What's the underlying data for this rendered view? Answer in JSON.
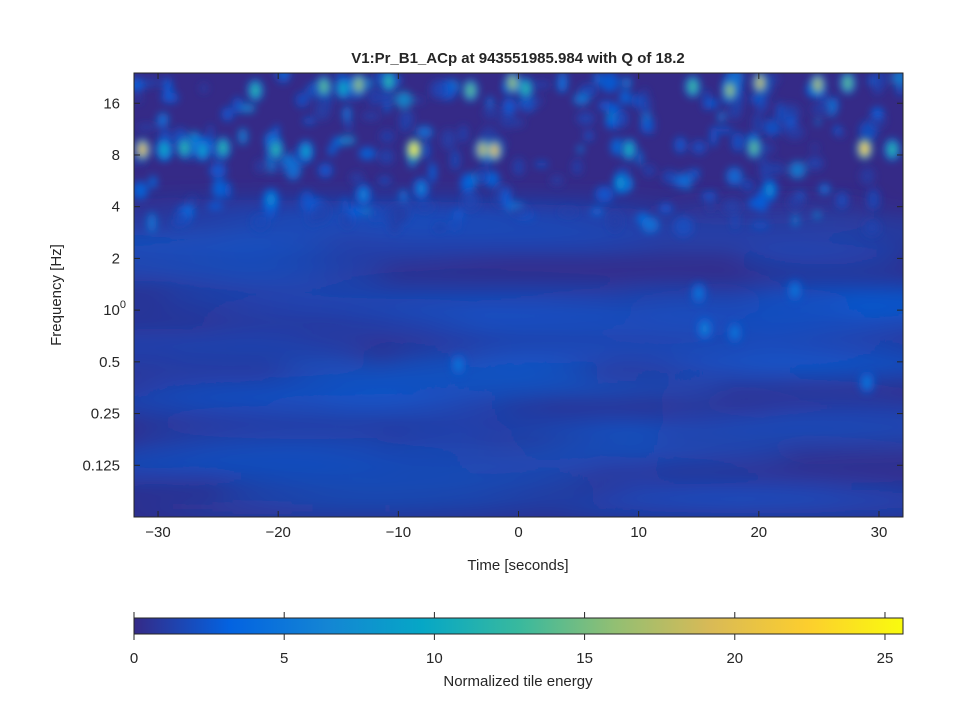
{
  "chart_data": {
    "type": "heatmap",
    "title": "V1:Pr_B1_ACp at 943551985.984 with Q of 18.2",
    "xlabel": "Time [seconds]",
    "ylabel": "Frequency [Hz]",
    "xlim": [
      -32,
      32
    ],
    "ylim": [
      0.0625,
      24
    ],
    "yscale": "log",
    "xticks": [
      {
        "value": -30,
        "label": "−30"
      },
      {
        "value": -20,
        "label": "−20"
      },
      {
        "value": -10,
        "label": "−10"
      },
      {
        "value": 0,
        "label": "0"
      },
      {
        "value": 10,
        "label": "10"
      },
      {
        "value": 20,
        "label": "20"
      },
      {
        "value": 30,
        "label": "30"
      }
    ],
    "yticks": [
      {
        "value": 16,
        "label": "16"
      },
      {
        "value": 8,
        "label": "8"
      },
      {
        "value": 4,
        "label": "4"
      },
      {
        "value": 2,
        "label": "2"
      },
      {
        "value": 1,
        "label": "10",
        "sup": "0"
      },
      {
        "value": 0.5,
        "label": "0.5"
      },
      {
        "value": 0.25,
        "label": "0.25"
      },
      {
        "value": 0.125,
        "label": "0.125"
      }
    ],
    "colorbar": {
      "label": "Normalized tile energy",
      "range": [
        0,
        25.6
      ],
      "ticks": [
        {
          "value": 0,
          "label": "0"
        },
        {
          "value": 5,
          "label": "5"
        },
        {
          "value": 10,
          "label": "10"
        },
        {
          "value": 15,
          "label": "15"
        },
        {
          "value": 20,
          "label": "20"
        },
        {
          "value": 25,
          "label": "25"
        }
      ]
    },
    "colormap": [
      "#352a87",
      "#0363e1",
      "#1485d4",
      "#06a7c6",
      "#38b99e",
      "#92bf73",
      "#d9ba56",
      "#fcce2e",
      "#f9fb0e"
    ],
    "hotspots": [
      {
        "t": -31.3,
        "f": 8.6,
        "energy": 20
      },
      {
        "t": -29.5,
        "f": 8.6,
        "energy": 10
      },
      {
        "t": -27.8,
        "f": 8.8,
        "energy": 12
      },
      {
        "t": -26.3,
        "f": 8.5,
        "energy": 9
      },
      {
        "t": -24.6,
        "f": 8.8,
        "energy": 12
      },
      {
        "t": -20.2,
        "f": 8.6,
        "energy": 12
      },
      {
        "t": -17.7,
        "f": 8.4,
        "energy": 9
      },
      {
        "t": -8.7,
        "f": 8.6,
        "energy": 25
      },
      {
        "t": -3.0,
        "f": 8.6,
        "energy": 18
      },
      {
        "t": -2.0,
        "f": 8.5,
        "energy": 20
      },
      {
        "t": 9.2,
        "f": 8.6,
        "energy": 11
      },
      {
        "t": 19.6,
        "f": 8.8,
        "energy": 14
      },
      {
        "t": 28.8,
        "f": 8.7,
        "energy": 23
      },
      {
        "t": 31.1,
        "f": 8.6,
        "energy": 12
      },
      {
        "t": -21.9,
        "f": 19.0,
        "energy": 12
      },
      {
        "t": -16.2,
        "f": 20.0,
        "energy": 14
      },
      {
        "t": -13.3,
        "f": 20.5,
        "energy": 16
      },
      {
        "t": -14.6,
        "f": 19.5,
        "energy": 10
      },
      {
        "t": -10.8,
        "f": 21.5,
        "energy": 12
      },
      {
        "t": -4.0,
        "f": 19.0,
        "energy": 14
      },
      {
        "t": -0.5,
        "f": 21.0,
        "energy": 16
      },
      {
        "t": 0.6,
        "f": 19.5,
        "energy": 12
      },
      {
        "t": 14.5,
        "f": 20.0,
        "energy": 13
      },
      {
        "t": 17.6,
        "f": 19.0,
        "energy": 16
      },
      {
        "t": 20.1,
        "f": 21.0,
        "energy": 18
      },
      {
        "t": 24.9,
        "f": 20.5,
        "energy": 17
      },
      {
        "t": 27.4,
        "f": 21.0,
        "energy": 14
      },
      {
        "t": 8.5,
        "f": 5.5,
        "energy": 8
      },
      {
        "t": 20.9,
        "f": 5.0,
        "energy": 7
      },
      {
        "t": -20.6,
        "f": 4.4,
        "energy": 7
      },
      {
        "t": -12.9,
        "f": 4.7,
        "energy": 6
      },
      {
        "t": -8.1,
        "f": 5.1,
        "energy": 6
      },
      {
        "t": 15.5,
        "f": 0.78,
        "energy": 6
      },
      {
        "t": 18.0,
        "f": 0.74,
        "energy": 5
      },
      {
        "t": 15.0,
        "f": 1.25,
        "energy": 5
      },
      {
        "t": 23.0,
        "f": 1.3,
        "energy": 5
      },
      {
        "t": -5.0,
        "f": 0.48,
        "energy": 5
      },
      {
        "t": 29.0,
        "f": 0.38,
        "energy": 5
      }
    ]
  }
}
